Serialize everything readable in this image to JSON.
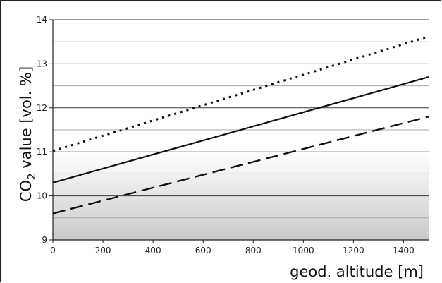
{
  "chart_data": {
    "type": "line",
    "ylabel_main": "CO",
    "ylabel_sub": "2",
    "ylabel_rest": " value [vol. %]",
    "xlabel": "geod. altitude [m]",
    "xlim": [
      0,
      1500
    ],
    "ylim": [
      9,
      14
    ],
    "x_ticks": [
      "0",
      "200",
      "400",
      "600",
      "800",
      "1000",
      "1200",
      "1400"
    ],
    "y_ticks": [
      "9",
      "10",
      "11",
      "12",
      "13",
      "14"
    ],
    "y_minor_grid": [
      9.5,
      10.5,
      11.5,
      12.5,
      13.5
    ],
    "shaded_band": {
      "from": 9,
      "to": 11
    },
    "grid": true,
    "series": [
      {
        "style": "dotted",
        "x": [
          0,
          1500
        ],
        "y": [
          11.02,
          13.62
        ]
      },
      {
        "style": "solid",
        "x": [
          0,
          1500
        ],
        "y": [
          10.3,
          12.7
        ]
      },
      {
        "style": "dashed",
        "x": [
          0,
          1500
        ],
        "y": [
          9.6,
          11.8
        ]
      }
    ]
  }
}
